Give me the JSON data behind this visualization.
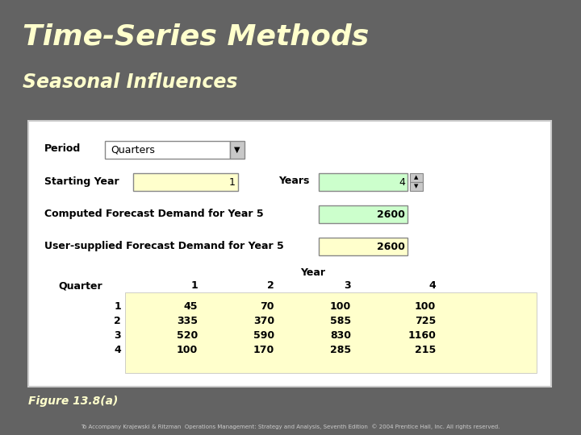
{
  "title": "Time-Series Methods",
  "subtitle": "Seasonal Influences",
  "background_color": "#636363",
  "title_color": "#ffffcc",
  "subtitle_color": "#ffffcc",
  "figure_label": "Figure 13.8(a)",
  "footer_text": "To Accompany Krajewski & Ritzman  Operations Management: Strategy and Analysis, Seventh Edition  © 2004 Prentice Hall, Inc. All rights reserved.",
  "period_label": "Period",
  "period_value": "Quarters",
  "starting_year_label": "Starting Year",
  "starting_year_value": "1",
  "years_label": "Years",
  "years_value": "4",
  "computed_label": "Computed Forecast Demand for Year 5",
  "computed_value": "2600",
  "user_label": "User-supplied Forecast Demand for Year 5",
  "user_value": "2600",
  "year_header": "Year",
  "quarter_header": "Quarter",
  "year_cols": [
    "1",
    "2",
    "3",
    "4"
  ],
  "quarter_rows": [
    "1",
    "2",
    "3",
    "4"
  ],
  "table_data": [
    [
      45,
      70,
      100,
      100
    ],
    [
      335,
      370,
      585,
      725
    ],
    [
      520,
      590,
      830,
      1160
    ],
    [
      100,
      170,
      285,
      215
    ]
  ],
  "input_yellow": "#ffffcc",
  "input_green": "#ccffcc"
}
